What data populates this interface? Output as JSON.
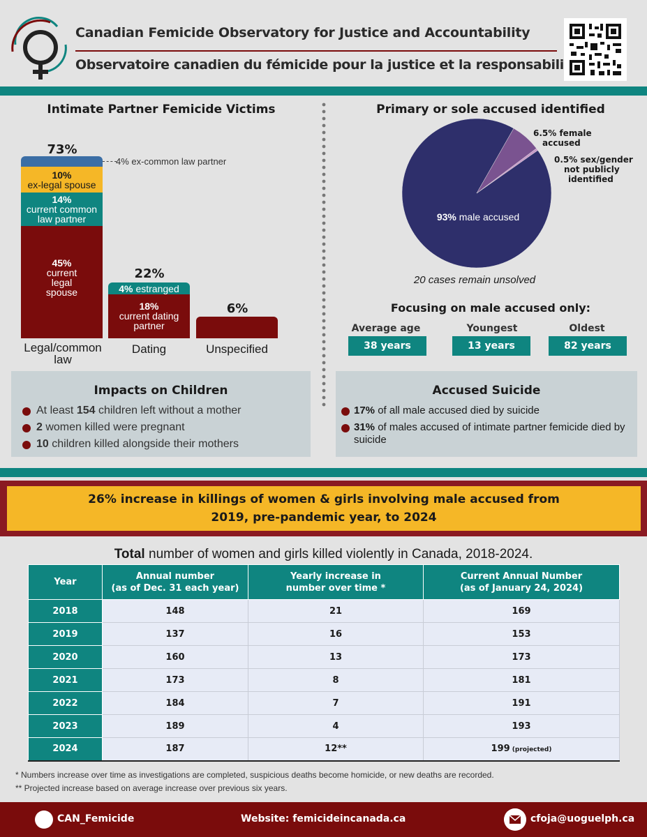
{
  "header": {
    "title_en": "Canadian Femicide Observatory for Justice and Accountability",
    "title_fr": "Observatoire canadien du fémicide pour la justice et la responsabilisation"
  },
  "left": {
    "title": "Intimate Partner Femicide Victims",
    "legal_total": "73%",
    "ex_common_law_note": "4% ex-common law partner",
    "ex_legal_pct": "10%",
    "ex_legal_label": "ex-legal spouse",
    "current_common_pct": "14%",
    "current_common_label": "current common law partner",
    "current_legal_pct": "45%",
    "current_legal_label": "current legal spouse",
    "dating_total": "22%",
    "estranged_pct": "4%",
    "estranged_label": "estranged",
    "current_dating_pct": "18%",
    "current_dating_label": "current dating partner",
    "unspecified_total": "6%",
    "cat_legal": "Legal/common law",
    "cat_dating": "Dating",
    "cat_unspecified": "Unspecified"
  },
  "right": {
    "title": "Primary or sole accused identified",
    "pie_male_pct": "93%",
    "pie_male_label": "male accused",
    "pie_female_label_1": "6.5% female",
    "pie_female_label_2": "accused",
    "pie_unknown_label_1": "0.5% sex/gender",
    "pie_unknown_label_2": "not publicly",
    "pie_unknown_label_3": "identified",
    "unsolved": "20 cases remain unsolved",
    "male_only_title": "Focusing on male accused only:",
    "avg_label": "Average age",
    "avg_value": "38 years",
    "young_label": "Youngest",
    "young_value": "13 years",
    "old_label": "Oldest",
    "old_value": "82 years"
  },
  "children": {
    "title": "Impacts on Children",
    "item1_pre": "At least ",
    "item1_num": "154",
    "item1_post": " children left without a mother",
    "item2_num": "2",
    "item2_post": " women killed were pregnant",
    "item3_num": "10",
    "item3_post": " children killed alongside their mothers"
  },
  "suicide": {
    "title": "Accused Suicide",
    "item1_num": "17%",
    "item1_post": " of all male accused died by suicide",
    "item2_num": "31%",
    "item2_post": " of males accused of intimate partner femicide died by suicide"
  },
  "banner": {
    "line1": "26% increase in killings of women & girls involving male accused from",
    "line2": "2019, pre-pandemic year, to 2024"
  },
  "table": {
    "title_bold": "Total",
    "title_rest": " number of women and girls killed violently in Canada, 2018-2024.",
    "col_year": "Year",
    "col_annual_1": "Annual number",
    "col_annual_2": "(as of Dec. 31 each year)",
    "col_increase_1": "Yearly increase in",
    "col_increase_2": "number over time *",
    "col_current_1": "Current Annual Number",
    "col_current_2": "(as of January 24, 2024)",
    "projected": "(projected)",
    "footnote1": "* Numbers increase over time as investigations are completed, suspicious deaths become homicide, or new deaths are recorded.",
    "footnote2": "** Projected increase based on average increase over previous six years."
  },
  "footer": {
    "social": "CAN_Femicide",
    "website": "Website: femicideincanada.ca",
    "email": "cfoja@uoguelph.ca"
  },
  "colors": {
    "teal": "#0f8580",
    "maroon": "#7a0c0c",
    "yellow": "#f5b727",
    "blue": "#3b6ea5",
    "navy": "#2e2f6b",
    "purple": "#7a5390"
  },
  "chart_data": [
    {
      "type": "bar",
      "title": "Intimate Partner Femicide Victims",
      "categories": [
        "Legal/common law",
        "Dating",
        "Unspecified"
      ],
      "totals": [
        73,
        22,
        6
      ],
      "series": [
        {
          "name": "current legal spouse",
          "values": [
            45,
            null,
            null
          ]
        },
        {
          "name": "current common law partner",
          "values": [
            14,
            null,
            null
          ]
        },
        {
          "name": "ex-legal spouse",
          "values": [
            10,
            null,
            null
          ]
        },
        {
          "name": "ex-common law partner",
          "values": [
            4,
            null,
            null
          ]
        },
        {
          "name": "current dating partner",
          "values": [
            null,
            18,
            null
          ]
        },
        {
          "name": "estranged",
          "values": [
            null,
            4,
            null
          ]
        },
        {
          "name": "Unspecified",
          "values": [
            null,
            null,
            6
          ]
        }
      ],
      "unit": "%"
    },
    {
      "type": "pie",
      "title": "Primary or sole accused identified",
      "labels": [
        "male accused",
        "female accused",
        "sex/gender not publicly identified"
      ],
      "values": [
        93,
        6.5,
        0.5
      ],
      "unit": "%"
    },
    {
      "type": "table",
      "title": "Total number of women and girls killed violently in Canada, 2018-2024.",
      "columns": [
        "Year",
        "Annual number (as of Dec. 31 each year)",
        "Yearly increase in number over time *",
        "Current Annual Number (as of January 24, 2024)"
      ],
      "rows": [
        [
          "2018",
          "148",
          "21",
          "169"
        ],
        [
          "2019",
          "137",
          "16",
          "153"
        ],
        [
          "2020",
          "160",
          "13",
          "173"
        ],
        [
          "2021",
          "173",
          "8",
          "181"
        ],
        [
          "2022",
          "184",
          "7",
          "191"
        ],
        [
          "2023",
          "189",
          "4",
          "193"
        ],
        [
          "2024",
          "187",
          "12**",
          "199"
        ]
      ]
    }
  ]
}
